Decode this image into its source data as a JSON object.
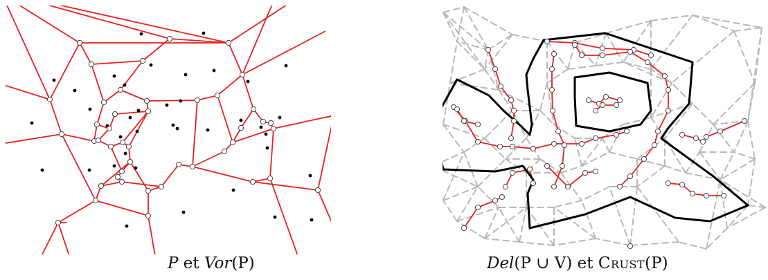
{
  "captions": {
    "left": {
      "symbol": "P",
      "conjunction": "et",
      "func": "Vor",
      "arg": "(P)"
    },
    "right": {
      "func": "Del",
      "arg": "(P ∪ V)",
      "conjunction": "et",
      "crust_first": "C",
      "crust_rest": "rust",
      "crust_arg": "(P)"
    }
  },
  "colors": {
    "voronoi_edge": "#e8201e",
    "crust_edge": "#000000",
    "delaunay_edge": "#b8b8b8",
    "site_point": "#000000",
    "vertex_fill": "#ffffff",
    "vertex_stroke": "#444444"
  },
  "figure_elements": [
    "site-points",
    "voronoi-vertices",
    "voronoi-edges",
    "delaunay-edges",
    "crust-polygon"
  ]
}
